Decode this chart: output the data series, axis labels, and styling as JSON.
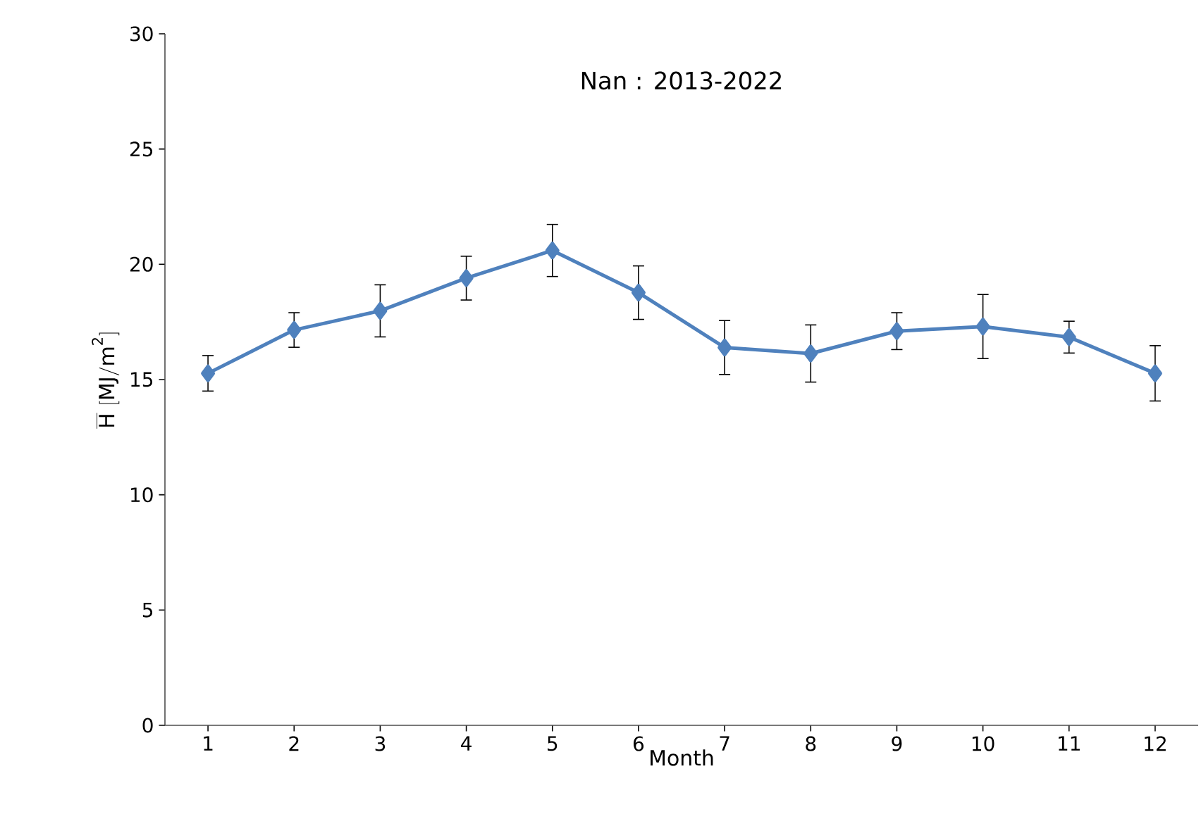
{
  "chart_data": {
    "type": "line",
    "title": "Nan : 2013-2022",
    "xlabel": "Month",
    "ylabel": "\\overline{\\mathrm{H}}\\ [\\mathrm{MJ/m^{2}}]",
    "categories": [
      "1",
      "2",
      "3",
      "4",
      "5",
      "6",
      "7",
      "8",
      "9",
      "10",
      "11",
      "12"
    ],
    "series": [
      {
        "color": "#4f81bd",
        "values": [
          15.27,
          17.15,
          17.98,
          19.4,
          20.6,
          18.77,
          16.39,
          16.13,
          17.1,
          17.3,
          16.84,
          15.27
        ],
        "errors": [
          0.77,
          0.75,
          1.13,
          0.95,
          1.13,
          1.16,
          1.17,
          1.24,
          0.8,
          1.39,
          0.69,
          1.2
        ]
      }
    ],
    "ylim": [
      0,
      30
    ],
    "yticks": [
      0,
      5,
      10,
      15,
      20,
      25,
      30
    ],
    "marker": "diamond",
    "line_style": "solid",
    "grid": false,
    "legend": false
  }
}
